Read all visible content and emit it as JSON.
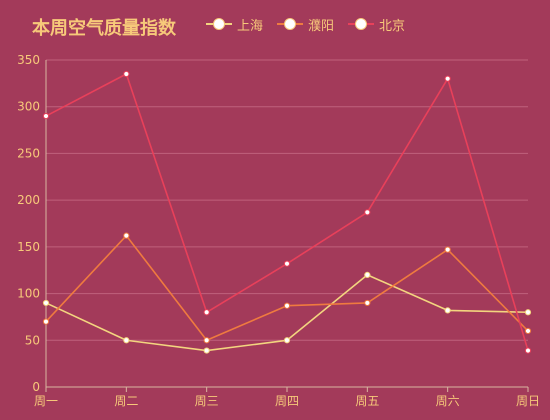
{
  "chart_data": {
    "type": "line",
    "title": "本周空气质量指数",
    "categories": [
      "周一",
      "周二",
      "周三",
      "周四",
      "周五",
      "周六",
      "周日"
    ],
    "ylim": [
      0,
      350
    ],
    "yticks": [
      0,
      50,
      100,
      150,
      200,
      250,
      300,
      350
    ],
    "grid": true,
    "legend_position": "top",
    "series": [
      {
        "name": "上海",
        "color": "#f3d57f",
        "values": [
          90,
          50,
          39,
          50,
          120,
          82,
          80
        ]
      },
      {
        "name": "濮阳",
        "color": "#ef7a3f",
        "values": [
          70,
          162,
          50,
          87,
          90,
          147,
          60
        ]
      },
      {
        "name": "北京",
        "color": "#e8405a",
        "values": [
          290,
          335,
          80,
          132,
          187,
          330,
          39
        ]
      }
    ]
  },
  "colors": {
    "background": "#a33a5a",
    "text": "#f7c97a",
    "grid": "#c0617c",
    "axis": "#d8b7a0"
  }
}
